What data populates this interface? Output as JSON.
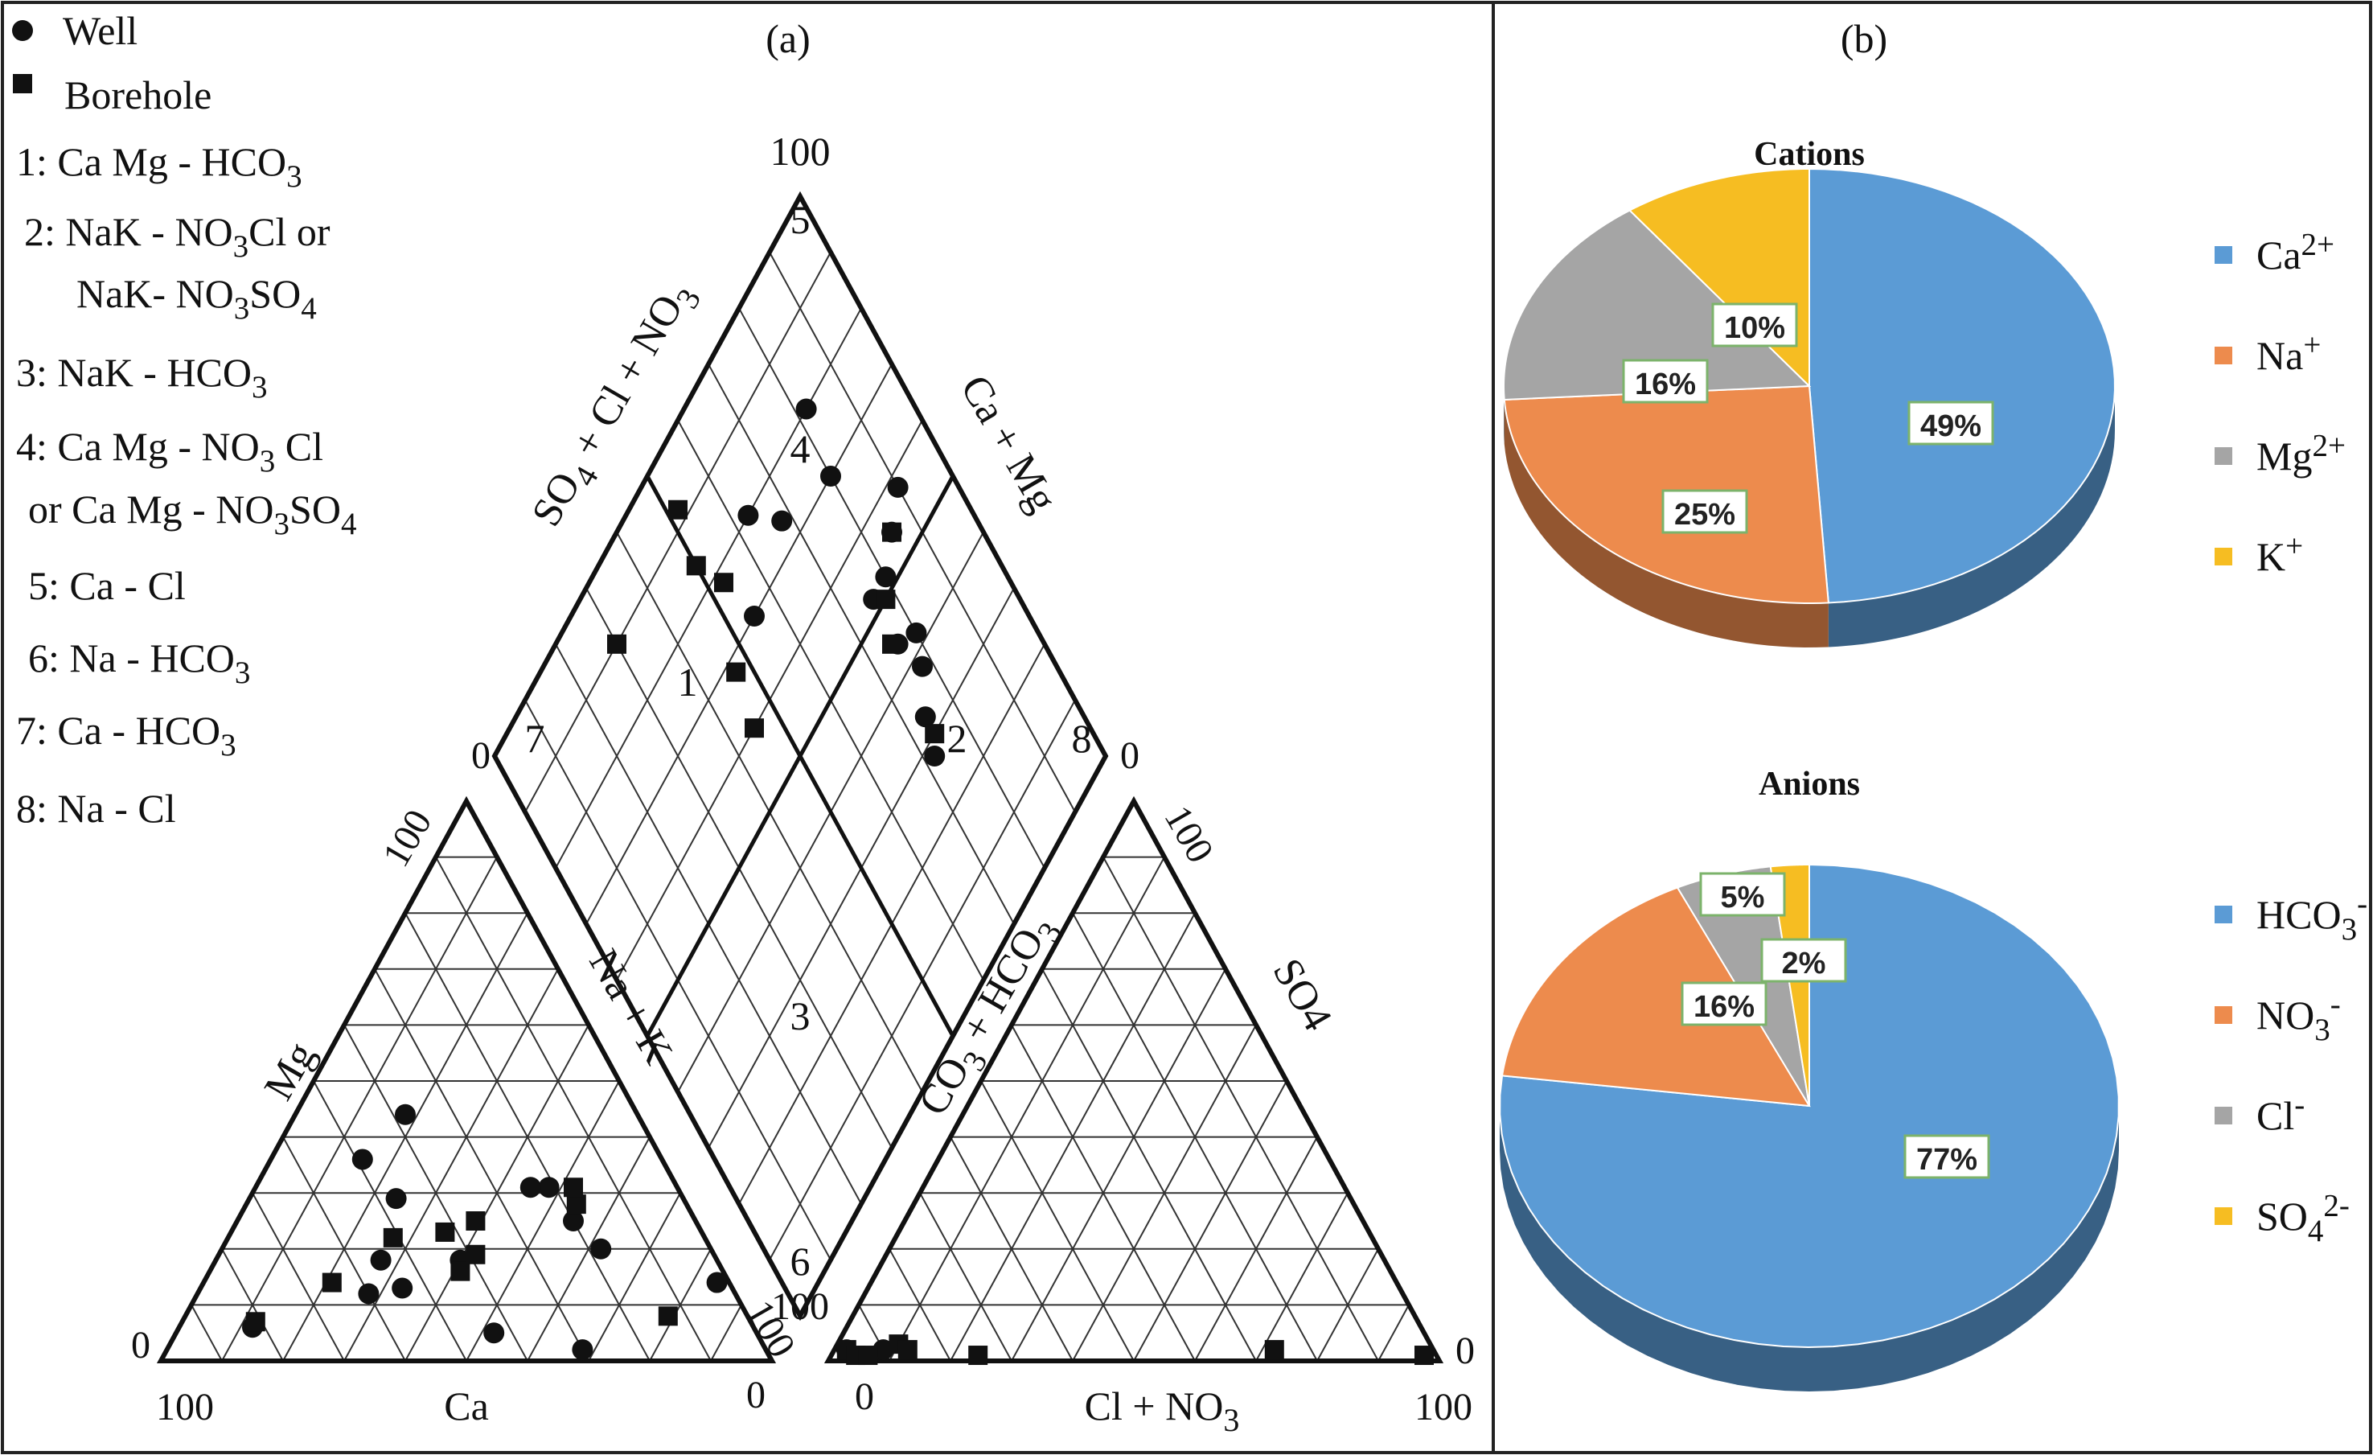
{
  "panel_a": {
    "label": "(a)",
    "legend": {
      "well": "Well",
      "borehole": "Borehole",
      "types": [
        {
          "id": "1",
          "lines": [
            [
              [
                "1: Ca Mg - HCO",
                ""
              ],
              [
                "3",
                "sub"
              ]
            ]
          ]
        },
        {
          "id": "2",
          "lines": [
            [
              [
                "2: NaK - NO",
                ""
              ],
              [
                "3",
                "sub"
              ],
              [
                "Cl or",
                ""
              ]
            ],
            [
              [
                "NaK- NO",
                ""
              ],
              [
                "3",
                "sub"
              ],
              [
                "SO",
                ""
              ],
              [
                "4",
                "sub"
              ]
            ]
          ]
        },
        {
          "id": "3",
          "lines": [
            [
              [
                "3: NaK - HCO",
                ""
              ],
              [
                "3",
                "sub"
              ]
            ]
          ]
        },
        {
          "id": "4",
          "lines": [
            [
              [
                "4: Ca Mg - NO",
                ""
              ],
              [
                "3",
                "sub"
              ],
              [
                " Cl",
                ""
              ]
            ],
            [
              [
                "or Ca Mg - NO",
                ""
              ],
              [
                "3",
                "sub"
              ],
              [
                "SO",
                ""
              ],
              [
                "4",
                "sub"
              ]
            ]
          ]
        },
        {
          "id": "5",
          "lines": [
            [
              [
                "5: Ca - Cl",
                ""
              ]
            ]
          ]
        },
        {
          "id": "6",
          "lines": [
            [
              [
                "6: Na - HCO",
                ""
              ],
              [
                "3",
                "sub"
              ]
            ]
          ]
        },
        {
          "id": "7",
          "lines": [
            [
              [
                "7: Ca - HCO",
                ""
              ],
              [
                "3",
                "sub"
              ]
            ]
          ]
        },
        {
          "id": "8",
          "lines": [
            [
              [
                "8: Na - Cl",
                ""
              ]
            ]
          ]
        }
      ]
    },
    "cation_triangle": {
      "axis_left": "Mg",
      "axis_right": "Na + K",
      "axis_bottom": "Ca",
      "ticks": {
        "top_left": "100",
        "left_bottom": "0",
        "bottom_left": "100",
        "bottom_right": "0",
        "right_bottom": "100"
      }
    },
    "anion_triangle": {
      "axis_left": "CO3 + HCO3",
      "axis_right": "SO4",
      "axis_bottom": "Cl + NO3",
      "ticks": {
        "top_right": "100",
        "right_bottom": "0",
        "bottom_left": "0",
        "bottom_right": "100",
        "left_bottom": "100"
      }
    },
    "diamond": {
      "axis_upper_left": "SO4 + Cl + NO3",
      "axis_upper_right": "Ca + Mg",
      "ticks": {
        "top": "100",
        "left": "0",
        "right": "0"
      },
      "zones": [
        "1",
        "2",
        "3",
        "4",
        "5",
        "6",
        "7",
        "8"
      ]
    }
  },
  "panel_b": {
    "label": "(b)",
    "colors": {
      "blue": "#5b9bd5",
      "orange": "#ed8b4d",
      "gray": "#a5a5a5",
      "gold": "#f6bd22"
    },
    "cations": {
      "title": "Cations",
      "slices": [
        {
          "name": "Ca",
          "sup": "2+",
          "percent": 49,
          "label": "49%"
        },
        {
          "name": "Na",
          "sup": "+",
          "percent": 25,
          "label": "25%"
        },
        {
          "name": "Mg",
          "sup": "2+",
          "percent": 16,
          "label": "16%"
        },
        {
          "name": "K",
          "sup": "+",
          "percent": 10,
          "label": "10%"
        }
      ]
    },
    "anions": {
      "title": "Anions",
      "slices": [
        {
          "name": "HCO",
          "sub": "3",
          "sup": "-",
          "percent": 77,
          "label": "77%"
        },
        {
          "name": "NO",
          "sub": "3",
          "sup": "-",
          "percent": 16,
          "label": "16%"
        },
        {
          "name": "Cl",
          "sup": "-",
          "percent": 5,
          "label": "5%"
        },
        {
          "name": "SO",
          "sub": "4",
          "sup": "2-",
          "percent": 2,
          "label": "2%"
        }
      ]
    }
  },
  "chart_data": [
    {
      "type": "scatter",
      "subtype": "piper-diagram",
      "series": [
        {
          "name": "Well",
          "marker": "circle",
          "cation_points": [
            [
              84,
              14
            ],
            [
              68,
              2
            ],
            [
              62,
              20
            ],
            [
              52,
              5
            ],
            [
              55,
              25
            ],
            [
              48,
              31
            ],
            [
              45,
              31
            ],
            [
              40,
              18
            ],
            [
              33,
              13
            ],
            [
              28,
              12
            ],
            [
              24,
              29
            ],
            [
              27,
              18
            ],
            [
              12,
              6
            ],
            [
              18,
              44
            ],
            [
              15,
              36
            ]
          ],
          "anion_points": [
            [
              2,
              2
            ],
            [
              8,
              2
            ]
          ],
          "diamond_points": [
            [
              82,
              20
            ],
            [
              80,
              30
            ],
            [
              55,
              30
            ],
            [
              72,
              72
            ],
            [
              74,
              67
            ],
            [
              78,
              62
            ],
            [
              80,
              58
            ],
            [
              76,
              56
            ],
            [
              76,
              48
            ],
            [
              80,
              48
            ],
            [
              85,
              45
            ],
            [
              90,
              42
            ],
            [
              68,
              26
            ],
            [
              63,
              20
            ]
          ]
        },
        {
          "name": "Borehole",
          "marker": "square",
          "cation_points": [
            [
              79,
              8
            ],
            [
              54,
              28
            ],
            [
              52,
              31
            ],
            [
              41,
              16
            ],
            [
              42,
              19
            ],
            [
              39,
              25
            ],
            [
              35,
              23
            ],
            [
              27,
              22
            ],
            [
              21,
              14
            ],
            [
              12,
              7
            ]
          ],
          "anion_points": [
            [
              2,
              2
            ],
            [
              4,
              1
            ],
            [
              6,
              1
            ],
            [
              10,
              3
            ],
            [
              12,
              2
            ],
            [
              24,
              1
            ],
            [
              72,
              2
            ],
            [
              97,
              1
            ]
          ],
          "diamond_points": [
            [
              52,
              8
            ],
            [
              50,
              16
            ],
            [
              53,
              22
            ],
            [
              45,
              40
            ],
            [
              47,
              32
            ],
            [
              75,
              55
            ],
            [
              78,
              50
            ],
            [
              85,
              45
            ],
            [
              74,
              70
            ],
            [
              30,
              10
            ]
          ]
        }
      ]
    },
    {
      "type": "pie",
      "title": "Cations",
      "categories": [
        "Ca2+",
        "Na+",
        "Mg2+",
        "K+"
      ],
      "values": [
        49,
        25,
        16,
        10
      ]
    },
    {
      "type": "pie",
      "title": "Anions",
      "categories": [
        "HCO3-",
        "NO3-",
        "Cl-",
        "SO4 2-"
      ],
      "values": [
        77,
        16,
        5,
        2
      ]
    }
  ]
}
